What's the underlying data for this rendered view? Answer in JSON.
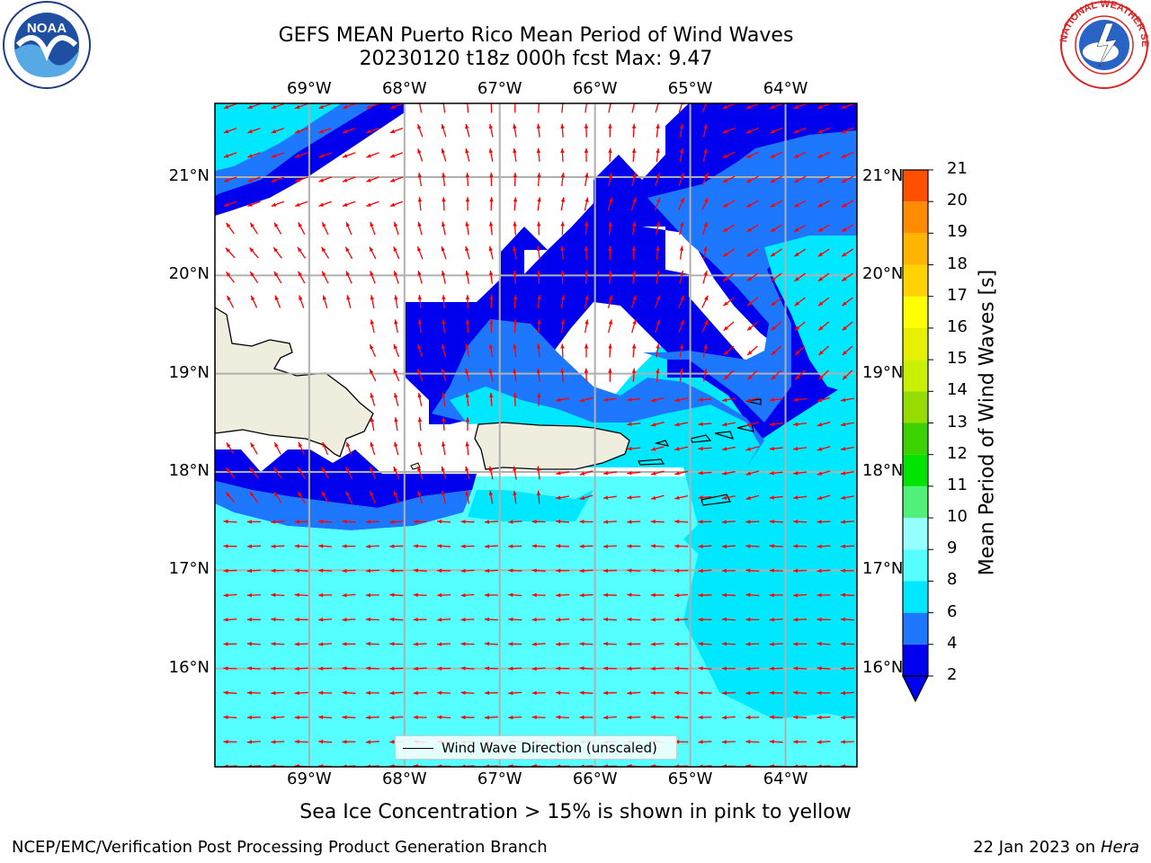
{
  "title": {
    "line1": "GEFS MEAN Puerto Rico Mean Period of Wind Waves",
    "line2": "20230120 t18z 000h fcst   Max: 9.47"
  },
  "subtitle": "Sea Ice Concentration > 15% is shown in pink to yellow",
  "footer": {
    "left": "NCEP/EMC/Verification Post Processing Product Generation Branch",
    "right_prefix": "22 Jan 2023 on ",
    "right_machine": "Hera"
  },
  "logos": {
    "noaa": {
      "text": "NOAA",
      "ring_text": "NATIONAL OCEANIC AND ATMOSPHERIC ADMINISTRATION",
      "ring_text_bottom": "U.S. DEPARTMENT OF COMMERCE"
    },
    "nws": {
      "ring_text": "NATIONAL WEATHER SERVICE"
    }
  },
  "map": {
    "lon_labels": [
      "69°W",
      "68°W",
      "67°W",
      "66°W",
      "65°W",
      "64°W"
    ],
    "lat_labels": [
      "21°N",
      "20°N",
      "19°N",
      "18°N",
      "17°N",
      "16°N"
    ],
    "lon_range": [
      -69.99,
      -63.25
    ],
    "lat_range": [
      15.0,
      21.75
    ],
    "legend": "Wind Wave Direction (unscaled)",
    "colors": {
      "land": "#efedde",
      "arrow": "#ff0000",
      "grid": "#b0b0b0"
    }
  },
  "colorbar": {
    "label": "Mean Period of Wind Waves [s]",
    "ticks": [
      "2",
      "4",
      "6",
      "8",
      "9",
      "10",
      "11",
      "12",
      "13",
      "14",
      "15",
      "16",
      "17",
      "18",
      "19",
      "20",
      "21"
    ],
    "colors": [
      "#0000ee",
      "#1e78ff",
      "#00e8ff",
      "#55ffff",
      "#96ffff",
      "#50f07a",
      "#00e400",
      "#3cd200",
      "#96dc00",
      "#c8f000",
      "#e6f000",
      "#ffff00",
      "#ffd200",
      "#ffb400",
      "#ff8c00",
      "#ff5000",
      "#ff2a00",
      "#ff0000"
    ],
    "extend_color": "#0000ee"
  },
  "chart_data": {
    "type": "heatmap",
    "title": "GEFS MEAN Puerto Rico Mean Period of Wind Waves",
    "variable": "Mean Period of Wind Waves [s]",
    "max": 9.47,
    "levels": [
      2,
      4,
      6,
      8,
      9,
      10,
      11,
      12,
      13,
      14,
      15,
      16,
      17,
      18,
      19,
      20,
      21
    ],
    "vectors": "Wind Wave Direction (unscaled)"
  }
}
